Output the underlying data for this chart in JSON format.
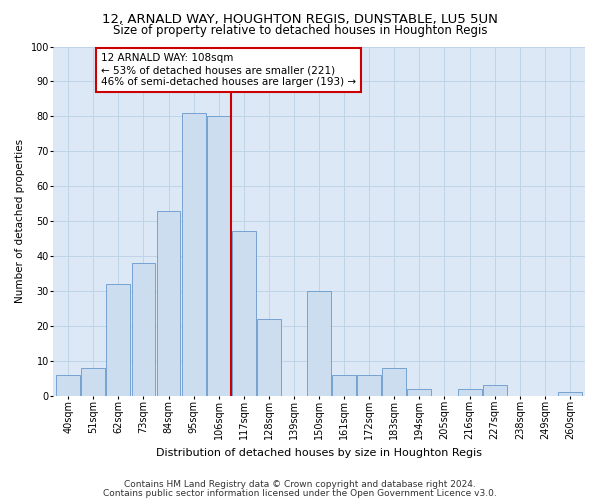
{
  "title": "12, ARNALD WAY, HOUGHTON REGIS, DUNSTABLE, LU5 5UN",
  "subtitle": "Size of property relative to detached houses in Houghton Regis",
  "xlabel": "Distribution of detached houses by size in Houghton Regis",
  "ylabel": "Number of detached properties",
  "categories": [
    "40sqm",
    "51sqm",
    "62sqm",
    "73sqm",
    "84sqm",
    "95sqm",
    "106sqm",
    "117sqm",
    "128sqm",
    "139sqm",
    "150sqm",
    "161sqm",
    "172sqm",
    "183sqm",
    "194sqm",
    "205sqm",
    "216sqm",
    "227sqm",
    "238sqm",
    "249sqm",
    "260sqm"
  ],
  "values": [
    6,
    8,
    32,
    38,
    53,
    81,
    80,
    47,
    22,
    0,
    30,
    6,
    6,
    8,
    2,
    0,
    2,
    3,
    0,
    0,
    1
  ],
  "bar_color": "#ccddf0",
  "bar_edge_color": "#6699cc",
  "vline_color": "#cc0000",
  "annotation_text": "12 ARNALD WAY: 108sqm\n← 53% of detached houses are smaller (221)\n46% of semi-detached houses are larger (193) →",
  "annotation_box_color": "#ffffff",
  "annotation_box_edge": "#cc0000",
  "ylim": [
    0,
    100
  ],
  "yticks": [
    0,
    10,
    20,
    30,
    40,
    50,
    60,
    70,
    80,
    90,
    100
  ],
  "grid_color": "#c0d4e8",
  "bg_color": "#dce8f5",
  "footer1": "Contains HM Land Registry data © Crown copyright and database right 2024.",
  "footer2": "Contains public sector information licensed under the Open Government Licence v3.0.",
  "title_fontsize": 9.5,
  "subtitle_fontsize": 8.5,
  "xlabel_fontsize": 8,
  "ylabel_fontsize": 7.5,
  "tick_fontsize": 7,
  "annot_fontsize": 7.5,
  "footer_fontsize": 6.5
}
